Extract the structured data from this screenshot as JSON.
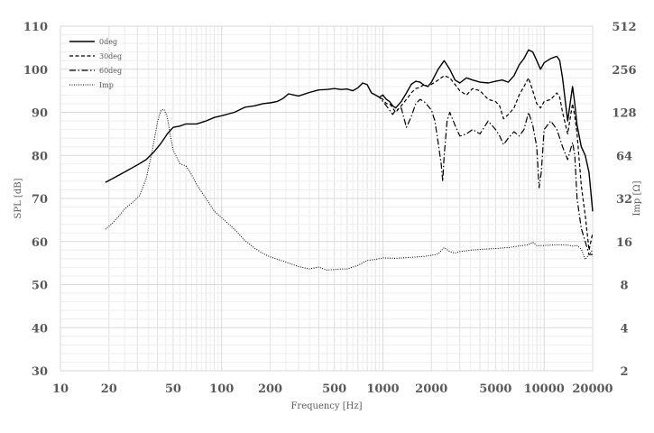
{
  "chart_data": {
    "type": "line",
    "title": "",
    "xlabel": "Frequency [Hz]",
    "ylabel": "SPL [dB]",
    "y2label": "Imp [Ω]",
    "x_scale": "log",
    "y2_scale": "log2",
    "xlim": [
      10,
      20000
    ],
    "ylim": [
      30,
      110
    ],
    "y2lim": [
      2,
      512
    ],
    "x_ticks": [
      "10",
      "20",
      "50",
      "100",
      "200",
      "500",
      "1000",
      "2000",
      "5000",
      "10000",
      "20000"
    ],
    "y_ticks": [
      "30",
      "40",
      "50",
      "60",
      "70",
      "80",
      "90",
      "100",
      "110"
    ],
    "y2_ticks": [
      "2",
      "4",
      "8",
      "16",
      "32",
      "64",
      "128",
      "256",
      "512"
    ],
    "grid": true,
    "legend_position": "top-left",
    "colors": {
      "series": "#000000",
      "grid": "#d9d9d9",
      "text": "#595959"
    },
    "series": [
      {
        "name": "0deg",
        "axis": "left",
        "style": "solid",
        "x": [
          19,
          22,
          26,
          30,
          34,
          38,
          42,
          46,
          50,
          55,
          60,
          70,
          80,
          90,
          100,
          120,
          140,
          160,
          180,
          200,
          220,
          240,
          260,
          300,
          350,
          400,
          450,
          500,
          550,
          600,
          650,
          700,
          750,
          800,
          850,
          900,
          950,
          1000,
          1050,
          1100,
          1150,
          1200,
          1300,
          1400,
          1500,
          1600,
          1700,
          1800,
          1900,
          2000,
          2200,
          2400,
          2600,
          2800,
          3000,
          3300,
          3600,
          4000,
          4500,
          5000,
          5500,
          6000,
          6500,
          7000,
          7500,
          8000,
          8500,
          9000,
          9500,
          10000,
          11000,
          12000,
          12500,
          13000,
          14000,
          15000,
          15500,
          16000,
          17000,
          18000,
          19000,
          20000
        ],
        "values": [
          73.7,
          75.0,
          76.5,
          77.8,
          79.0,
          80.8,
          82.8,
          85.0,
          86.5,
          86.8,
          87.3,
          87.3,
          88.0,
          88.8,
          89.2,
          90.0,
          91.2,
          91.5,
          92.0,
          92.2,
          92.5,
          93.2,
          94.3,
          93.8,
          94.6,
          95.2,
          95.3,
          95.5,
          95.3,
          95.4,
          95.0,
          95.7,
          96.8,
          96.4,
          94.5,
          94.0,
          93.5,
          94.0,
          93.0,
          92.5,
          91.5,
          91.0,
          92.5,
          94.5,
          96.5,
          97.2,
          97.0,
          96.3,
          96.0,
          97.0,
          100.0,
          102.0,
          100.0,
          97.5,
          96.8,
          98.0,
          97.5,
          97.0,
          96.8,
          97.2,
          97.5,
          97.0,
          98.5,
          101.0,
          102.5,
          104.5,
          104.0,
          102.0,
          100.0,
          101.5,
          102.5,
          103.0,
          102.0,
          98.0,
          88.0,
          96.0,
          92.0,
          87.0,
          82.0,
          80.0,
          76.0,
          67.0
        ]
      },
      {
        "name": "30deg",
        "axis": "left",
        "style": "dashed",
        "x": [
          900,
          950,
          1000,
          1050,
          1100,
          1150,
          1200,
          1300,
          1400,
          1500,
          1600,
          1700,
          1800,
          1900,
          2000,
          2200,
          2400,
          2600,
          2800,
          3000,
          3300,
          3600,
          4000,
          4500,
          5000,
          5300,
          5600,
          6000,
          6500,
          7000,
          7500,
          8000,
          8500,
          9000,
          9500,
          10000,
          11000,
          12000,
          12500,
          13000,
          14000,
          15000,
          15500,
          16000,
          17000,
          18000,
          19000,
          20000
        ],
        "values": [
          94.0,
          93.5,
          93.0,
          92.0,
          92.0,
          91.0,
          90.0,
          91.5,
          93.0,
          94.5,
          95.5,
          95.8,
          96.5,
          96.0,
          96.5,
          97.5,
          98.5,
          98.0,
          96.5,
          95.0,
          94.0,
          95.5,
          95.0,
          93.0,
          92.5,
          91.5,
          88.5,
          89.5,
          91.0,
          94.0,
          96.0,
          98.0,
          95.0,
          92.0,
          91.0,
          92.5,
          93.0,
          94.5,
          93.5,
          90.0,
          85.0,
          92.0,
          89.0,
          85.0,
          73.0,
          66.0,
          58.0,
          62.0
        ]
      },
      {
        "name": "60deg",
        "axis": "left",
        "style": "dashdot",
        "x": [
          900,
          950,
          1000,
          1050,
          1100,
          1150,
          1200,
          1300,
          1400,
          1500,
          1600,
          1700,
          1800,
          1900,
          2000,
          2100,
          2200,
          2300,
          2350,
          2400,
          2500,
          2600,
          2800,
          3000,
          3300,
          3600,
          4000,
          4500,
          5000,
          5300,
          5600,
          6000,
          6500,
          7000,
          7500,
          8000,
          8500,
          9000,
          9300,
          9600,
          10000,
          11000,
          12000,
          12500,
          13000,
          14000,
          15000,
          15500,
          16000,
          17000,
          18000,
          19000,
          20000
        ],
        "values": [
          94.0,
          93.5,
          92.5,
          91.5,
          90.5,
          89.5,
          90.5,
          91.0,
          86.5,
          89.0,
          92.0,
          93.0,
          92.5,
          91.5,
          90.5,
          88.0,
          83.0,
          78.0,
          74.0,
          80.0,
          88.0,
          90.0,
          87.0,
          84.5,
          85.0,
          86.0,
          85.0,
          88.0,
          86.0,
          84.5,
          82.5,
          84.0,
          85.5,
          84.5,
          86.0,
          90.0,
          87.0,
          82.0,
          72.5,
          76.0,
          86.0,
          88.0,
          86.0,
          84.0,
          82.0,
          79.0,
          83.0,
          80.0,
          70.0,
          63.0,
          60.0,
          57.0,
          57.0
        ]
      },
      {
        "name": "Imp",
        "axis": "right",
        "style": "dotted",
        "x": [
          19,
          21,
          23,
          25,
          28,
          31,
          34,
          37,
          40,
          42,
          44,
          46,
          48,
          50,
          55,
          60,
          65,
          70,
          80,
          90,
          100,
          120,
          140,
          160,
          180,
          200,
          250,
          300,
          350,
          400,
          450,
          500,
          550,
          600,
          700,
          800,
          900,
          1000,
          1200,
          1500,
          1800,
          2000,
          2200,
          2400,
          2600,
          2800,
          3000,
          3500,
          4000,
          5000,
          6000,
          7000,
          8000,
          8500,
          9000,
          10000,
          12000,
          14000,
          15000,
          16000,
          17000,
          18000,
          19000,
          20000
        ],
        "values": [
          19.5,
          21.5,
          24,
          27,
          30,
          33.5,
          44,
          68,
          110,
          132,
          134,
          118,
          88,
          70,
          56,
          54,
          47,
          40,
          32,
          26,
          23.5,
          19.5,
          16.2,
          14.4,
          13.2,
          12.5,
          11.5,
          10.7,
          10.3,
          10.6,
          10.1,
          10.2,
          10.3,
          10.3,
          10.9,
          11.8,
          12.0,
          12.3,
          12.2,
          12.4,
          12.6,
          12.8,
          13.1,
          14.5,
          13.6,
          13.3,
          13.6,
          13.9,
          14.1,
          14.3,
          14.5,
          14.9,
          15.2,
          15.8,
          15.0,
          15.0,
          15.2,
          15.1,
          14.9,
          15.0,
          14.2,
          12.0,
          13.0,
          14.0
        ]
      }
    ]
  }
}
